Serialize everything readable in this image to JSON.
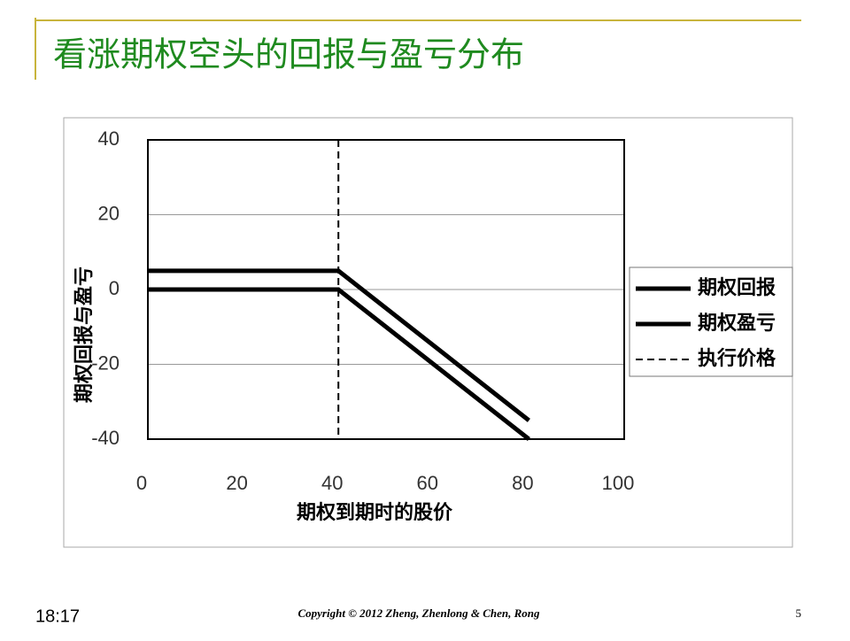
{
  "slide": {
    "title": "看涨期权空头的回报与盈亏分布",
    "time": "18:17",
    "copyright": "Copyright © 2012 Zheng, Zhenlong & Chen, Rong",
    "page": "5"
  },
  "chart_data": {
    "type": "line",
    "x_label": "期权到期时的股价",
    "y_label": "期权回报与盈亏",
    "x": [
      0,
      40,
      80
    ],
    "series": [
      {
        "name": "期权回报",
        "color": "#000000",
        "values": [
          0,
          0,
          -40
        ]
      },
      {
        "name": "期权盈亏",
        "color": "#000000",
        "values": [
          5,
          5,
          -35
        ]
      }
    ],
    "strike": {
      "name": "执行价格",
      "value": 40,
      "color": "#000000"
    },
    "xlim": [
      0,
      100
    ],
    "xticks": [
      0,
      20,
      40,
      60,
      80,
      100
    ],
    "ylim": [
      -40,
      40
    ],
    "yticks": [
      40,
      20,
      0,
      -20,
      -40
    ],
    "grid": true,
    "legend": "right"
  }
}
